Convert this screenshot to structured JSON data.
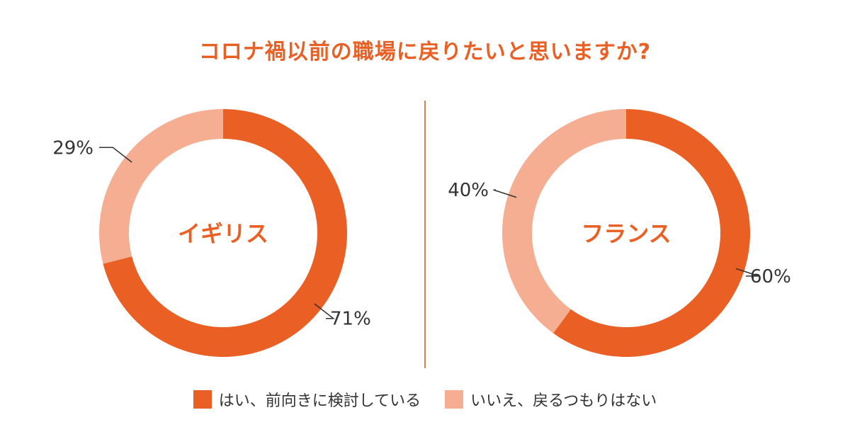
{
  "title": "コロナ禍以前の職場に戻りたいと思いますか?",
  "colors": {
    "yes": "#ea5f24",
    "no": "#f5ae91",
    "divider": "#d7834f",
    "text": "#333333"
  },
  "legend": [
    {
      "label": "はい、前向きに検討している",
      "color": "#ea5f24"
    },
    {
      "label": "いいえ、戻るつもりはない",
      "color": "#f5ae91"
    }
  ],
  "chart_data": [
    {
      "type": "pie",
      "title": "イギリス",
      "categories": [
        "はい、前向きに検討している",
        "いいえ、戻るつもりはない"
      ],
      "values": [
        71,
        29
      ],
      "labels": [
        "71%",
        "29%"
      ]
    },
    {
      "type": "pie",
      "title": "フランス",
      "categories": [
        "はい、前向きに検討している",
        "いいえ、戻るつもりはない"
      ],
      "values": [
        60,
        40
      ],
      "labels": [
        "60%",
        "40%"
      ]
    }
  ]
}
